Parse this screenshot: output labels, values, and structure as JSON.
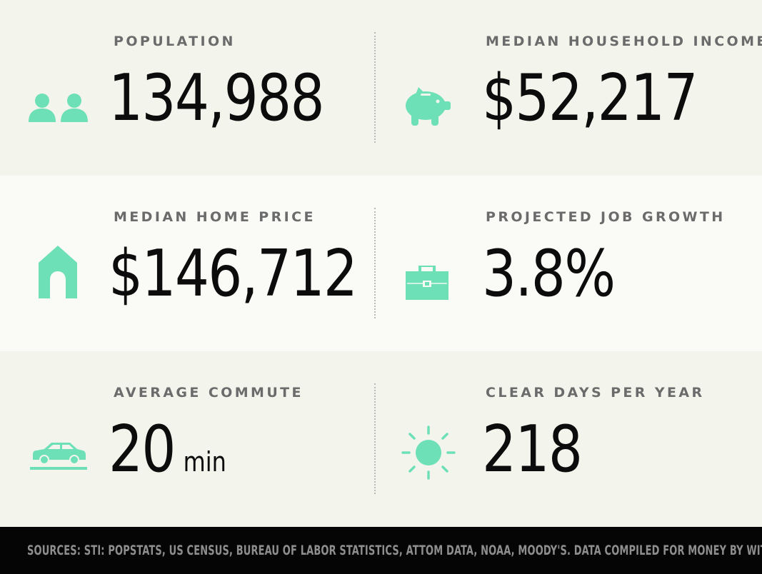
{
  "colors": {
    "accent": "#6ee0b8",
    "label": "#6b6b6b",
    "value": "#0c0c0c",
    "footer_bg": "#050505",
    "footer_text": "#8e8e8e"
  },
  "stats": [
    {
      "label": "POPULATION",
      "value": "134,988",
      "icon": "people-icon"
    },
    {
      "label": "MEDIAN HOUSEHOLD INCOME",
      "value": "$52,217",
      "icon": "piggy-bank-icon"
    },
    {
      "label": "MEDIAN HOME PRICE",
      "value": "$146,712",
      "icon": "house-icon"
    },
    {
      "label": "PROJECTED JOB GROWTH",
      "value": "3.8%",
      "icon": "briefcase-icon"
    },
    {
      "label": "AVERAGE COMMUTE",
      "value": "20",
      "unit": "min",
      "icon": "car-icon"
    },
    {
      "label": "CLEAR DAYS PER YEAR",
      "value": "218",
      "icon": "sun-icon"
    }
  ],
  "footer": {
    "sources": "SOURCES: STI: POPSTATS, US CENSUS, BUREAU OF LABOR STATISTICS, ATTOM DATA, NOAA, MOODY'S. DATA COMPILED FOR MONEY BY WITLYTIC."
  }
}
